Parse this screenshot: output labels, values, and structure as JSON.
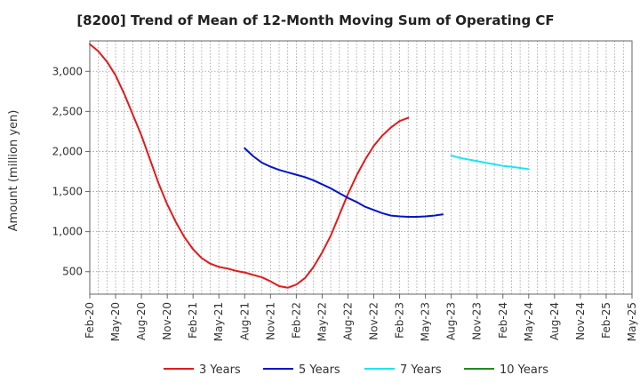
{
  "chart_data": {
    "type": "line",
    "title": "[8200]  Trend of Mean of 12-Month Moving Sum of Operating CF",
    "xlabel": "",
    "ylabel": "Amount (million yen)",
    "ylim": [
      220,
      3380
    ],
    "y_ticks": [
      500,
      1000,
      1500,
      2000,
      2500,
      3000
    ],
    "y_tick_labels": [
      "500",
      "1,000",
      "1,500",
      "2,000",
      "2,500",
      "3,000"
    ],
    "x_categories": [
      "Feb-20",
      "May-20",
      "Aug-20",
      "Nov-20",
      "Feb-21",
      "May-21",
      "Aug-21",
      "Nov-21",
      "Feb-22",
      "May-22",
      "Aug-22",
      "Nov-22",
      "Feb-23",
      "May-23",
      "Aug-23",
      "Nov-23",
      "Feb-24",
      "May-24",
      "Aug-24",
      "Nov-24",
      "Feb-25",
      "May-25"
    ],
    "grid": true,
    "legend_position": "bottom",
    "series": [
      {
        "name": "3 Years",
        "color": "#e31a1c",
        "start_index": 0,
        "values": [
          3340,
          3250,
          3120,
          2950,
          2720,
          2460,
          2200,
          1900,
          1600,
          1340,
          1120,
          930,
          780,
          670,
          600,
          560,
          540,
          510,
          490,
          460,
          430,
          380,
          320,
          300,
          340,
          420,
          560,
          740,
          950,
          1210,
          1470,
          1700,
          1900,
          2070,
          2200,
          2300,
          2380,
          2420
        ]
      },
      {
        "name": "5 Years",
        "color": "#0015c8",
        "start_index": 6,
        "values": [
          2040,
          1940,
          1860,
          1810,
          1770,
          1740,
          1710,
          1680,
          1640,
          1590,
          1540,
          1480,
          1420,
          1370,
          1310,
          1270,
          1230,
          1200,
          1190,
          1185,
          1185,
          1190,
          1200,
          1215
        ]
      },
      {
        "name": "7 Years",
        "color": "#19e6f2",
        "start_index": 14,
        "values": [
          1950,
          1920,
          1900,
          1880,
          1860,
          1840,
          1820,
          1810,
          1795,
          1780
        ]
      },
      {
        "name": "10 Years",
        "color": "#1f8a1f",
        "start_index": 0,
        "values": []
      }
    ]
  }
}
